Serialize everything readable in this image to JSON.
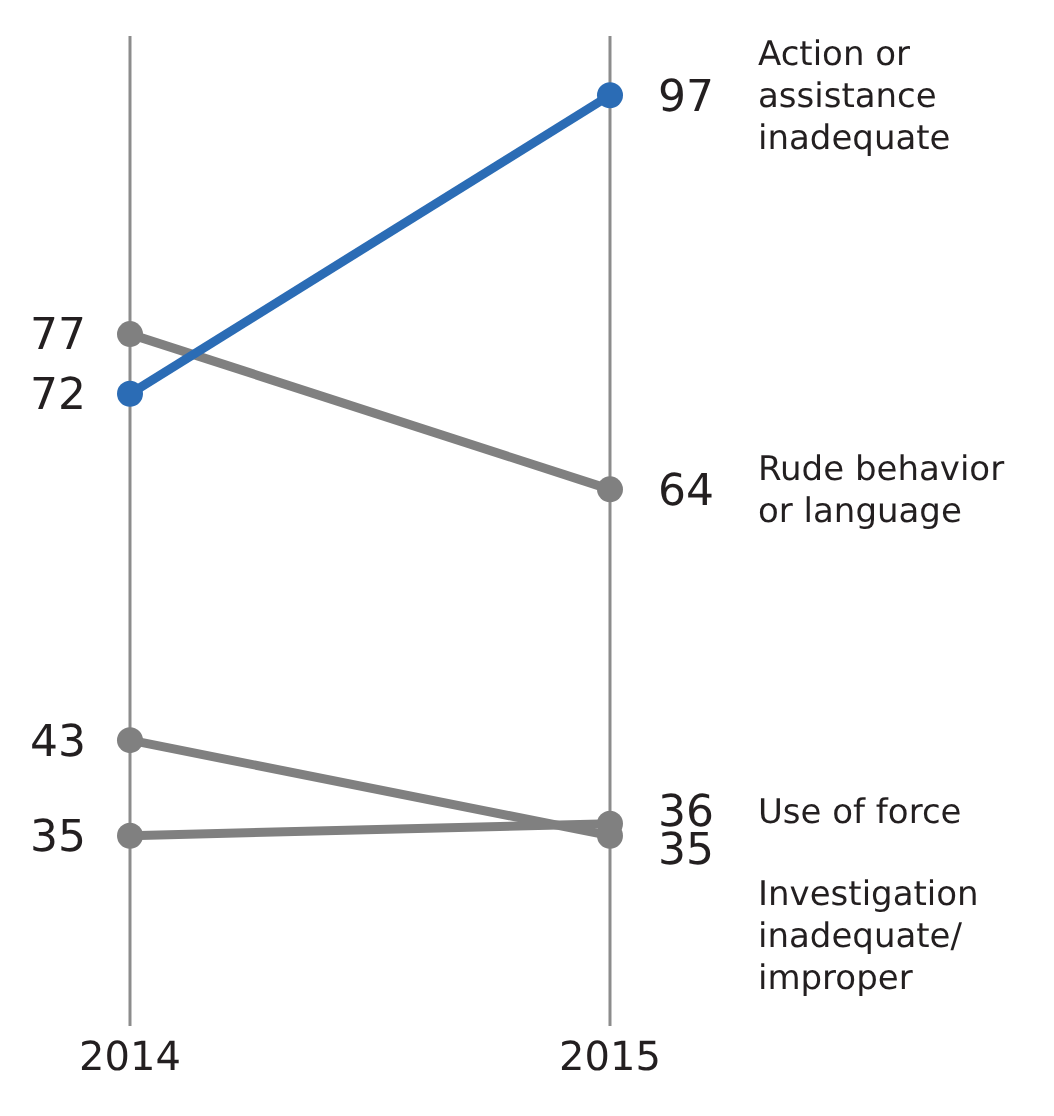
{
  "chart_data": {
    "type": "line",
    "categories": [
      "2014",
      "2015"
    ],
    "series": [
      {
        "name": "Action or assistance inadequate",
        "color": "#2b6cb5",
        "values": [
          72,
          97
        ]
      },
      {
        "name": "Rude behavior or language",
        "color": "#808080",
        "values": [
          77,
          64
        ]
      },
      {
        "name": "Use of force",
        "color": "#808080",
        "values": [
          35,
          36
        ]
      },
      {
        "name": "Investigation inadequate/improper",
        "color": "#808080",
        "values": [
          43,
          35
        ]
      }
    ],
    "data_labels": true,
    "grid": "x",
    "marker": "circle",
    "line_style": "solid"
  }
}
